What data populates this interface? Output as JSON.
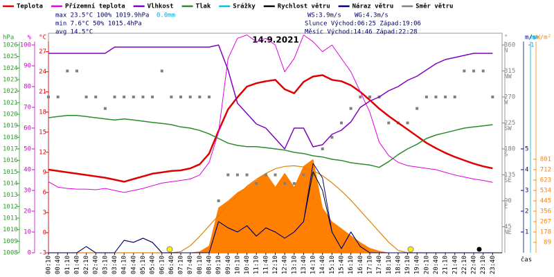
{
  "chart_data": {
    "type": "line",
    "title": "14.9.2021",
    "stats": [
      "max 23.5°C 100% 1019.9hPa",
      "min  7.6°C  50% 1015.4hPa",
      "avg 14.5°C"
    ],
    "rain_total": "0.0mm",
    "wind_stats": [
      "WS:3.9m/s",
      "WG:4.3m/s"
    ],
    "sun": "Slunce Východ:06:25 Západ:19:06",
    "moon": "Měsíc  Východ:14:46 Západ:22:28",
    "x_label": "čas",
    "categories": [
      "00:10",
      "00:40",
      "01:10",
      "01:40",
      "02:10",
      "02:40",
      "03:10",
      "03:40",
      "04:10",
      "04:40",
      "05:10",
      "05:40",
      "06:10",
      "06:40",
      "07:10",
      "07:40",
      "08:10",
      "08:40",
      "09:10",
      "09:40",
      "10:10",
      "10:40",
      "11:10",
      "11:40",
      "12:10",
      "12:40",
      "13:10",
      "13:40",
      "14:10",
      "14:40",
      "15:10",
      "15:40",
      "16:10",
      "16:40",
      "17:10",
      "17:40",
      "18:10",
      "18:40",
      "19:10",
      "19:40",
      "20:10",
      "20:40",
      "21:10",
      "21:40",
      "22:10",
      "22:40",
      "23:10",
      "23:40"
    ],
    "axes": {
      "pressure": {
        "unit": "hPa",
        "color": "#2a9d2a",
        "ylim": [
          1008,
          1026
        ],
        "yticks": [
          1008,
          1009,
          1010,
          1011,
          1012,
          1013,
          1014,
          1015,
          1016,
          1017,
          1018,
          1019,
          1020,
          1021,
          1022,
          1023,
          1024,
          1025,
          1026
        ]
      },
      "humidity": {
        "unit": "%",
        "color": "#d000d0",
        "ylim": [
          0,
          100
        ],
        "yticks": [
          0,
          10,
          20,
          30,
          40,
          50,
          60,
          70,
          80,
          90,
          100
        ]
      },
      "temperature": {
        "unit": "°C",
        "color": "#e00000",
        "ylim": [
          -3,
          28
        ],
        "yticks": [
          -3,
          0,
          3,
          6,
          9,
          12,
          15,
          18,
          21,
          24,
          27
        ]
      },
      "direction": {
        "unit": "°",
        "color": "#808080",
        "ylim": [
          0,
          360
        ],
        "yticks": [
          45,
          90,
          135,
          180,
          225,
          270,
          315,
          360
        ],
        "tick_names": [
          "NE",
          "E",
          "SE",
          "S",
          "SW",
          "W",
          "NW",
          "N"
        ]
      },
      "wind": {
        "unit": "m/s",
        "color": "#000080",
        "ylim": [
          0,
          10
        ],
        "yticks": [
          1,
          2,
          3,
          4,
          5
        ]
      },
      "rain": {
        "unit": "mm",
        "color": "#00a8e0",
        "ylim": [
          0,
          1
        ],
        "yticks": [
          1
        ]
      },
      "solar": {
        "unit": "W/m²",
        "color": "#ff8000",
        "ylim": [
          0,
          1780
        ],
        "yticks": [
          89,
          178,
          267,
          356,
          445,
          534,
          623,
          712,
          801
        ]
      }
    },
    "series": [
      {
        "color": "#ff8000",
        "axis": "solar",
        "style": "area",
        "values": [
          0,
          0,
          0,
          0,
          0,
          0,
          0,
          0,
          0,
          0,
          0,
          0,
          0,
          0,
          0,
          0,
          10,
          60,
          386,
          445,
          516,
          564,
          623,
          683,
          564,
          683,
          564,
          742,
          801,
          386,
          267,
          208,
          148,
          89,
          40,
          15,
          0,
          0,
          0,
          0,
          0,
          0,
          0,
          0,
          0,
          0,
          0,
          0
        ]
      },
      {
        "color": "#e08000",
        "axis": "solar",
        "style": "line",
        "values": [
          0,
          0,
          0,
          0,
          0,
          0,
          0,
          0,
          0,
          0,
          0,
          0,
          0,
          0,
          10,
          60,
          140,
          230,
          320,
          410,
          490,
          570,
          630,
          680,
          720,
          740,
          745,
          735,
          705,
          660,
          600,
          530,
          450,
          360,
          270,
          180,
          90,
          20,
          0,
          0,
          0,
          0,
          0,
          0,
          0,
          0,
          0,
          0
        ]
      },
      {
        "name": "Teplota",
        "color": "#e00000",
        "axis": "temperature",
        "style": "line",
        "width": 2.5,
        "values": [
          9.4,
          9.2,
          9.0,
          8.8,
          8.6,
          8.4,
          8.2,
          7.9,
          7.6,
          8.0,
          8.4,
          8.8,
          9.0,
          9.2,
          9.3,
          9.6,
          10.2,
          11.8,
          15.2,
          18.4,
          20.2,
          21.8,
          22.3,
          22.6,
          22.8,
          21.4,
          20.8,
          22.5,
          23.3,
          23.5,
          22.8,
          22.6,
          22.0,
          21.0,
          19.8,
          18.5,
          17.4,
          16.4,
          15.4,
          14.4,
          13.4,
          12.6,
          11.9,
          11.3,
          10.8,
          10.3,
          9.9,
          9.6
        ]
      },
      {
        "name": "Přízemní teplota",
        "color": "#e000e0",
        "axis": "temperature",
        "style": "line",
        "width": 1,
        "values": [
          7.6,
          6.8,
          6.6,
          6.5,
          6.5,
          6.4,
          6.6,
          6.3,
          6.0,
          6.3,
          6.6,
          7.0,
          7.4,
          7.6,
          7.8,
          8.0,
          8.6,
          10.5,
          15,
          26,
          29,
          29.5,
          28.5,
          29,
          28,
          24,
          26,
          29.5,
          28.5,
          27,
          28,
          26,
          24,
          21,
          18,
          13.5,
          11.5,
          10.5,
          10,
          9.8,
          9.6,
          9.4,
          9.0,
          8.6,
          8.3,
          8.0,
          7.8,
          7.5
        ]
      },
      {
        "name": "Vlhkost",
        "color": "#8000c0",
        "axis": "humidity",
        "style": "line",
        "width": 1.5,
        "values": [
          96,
          96,
          96,
          96,
          96,
          96,
          96,
          99,
          99,
          99,
          99,
          99,
          99,
          99,
          99,
          99,
          99,
          99,
          100,
          88,
          72,
          67,
          62,
          60,
          55,
          50,
          60,
          60,
          51,
          52,
          57,
          59,
          63,
          70,
          73,
          75,
          78,
          80,
          83,
          85,
          88,
          91,
          93,
          94,
          95,
          96,
          96,
          96
        ]
      },
      {
        "name": "Tlak",
        "color": "#2a8a2a",
        "axis": "pressure",
        "style": "line",
        "width": 1.5,
        "values": [
          1019.7,
          1019.8,
          1019.9,
          1019.9,
          1019.8,
          1019.7,
          1019.6,
          1019.5,
          1019.6,
          1019.5,
          1019.4,
          1019.3,
          1019.2,
          1019.1,
          1018.9,
          1018.8,
          1018.6,
          1018.3,
          1017.9,
          1017.5,
          1017.3,
          1017.2,
          1017.2,
          1017.1,
          1017.0,
          1016.9,
          1016.7,
          1016.6,
          1016.4,
          1016.3,
          1016.1,
          1016.0,
          1015.8,
          1015.7,
          1015.6,
          1015.4,
          1015.9,
          1016.5,
          1017.0,
          1017.4,
          1017.9,
          1018.2,
          1018.4,
          1018.6,
          1018.8,
          1018.9,
          1019.0,
          1019.1
        ]
      },
      {
        "name": "Srážky",
        "color": "#00c0e0",
        "axis": "rain",
        "style": "line"
      },
      {
        "name": "Rychlost větru",
        "color": "#000000",
        "axis": "wind",
        "style": "line",
        "width": 1,
        "values": [
          0,
          0,
          0,
          0,
          0.3,
          0,
          0,
          0,
          0.6,
          0.5,
          0.7,
          0.5,
          0,
          0,
          0,
          0,
          0,
          0,
          1.5,
          1.2,
          1.0,
          1.3,
          0.8,
          1.2,
          1.0,
          0.7,
          1.0,
          1.5,
          3.9,
          3.0,
          1.0,
          0.2,
          1.0,
          0.3,
          0,
          0,
          0,
          0,
          0,
          0,
          0,
          0,
          0,
          0,
          0,
          0,
          0,
          0
        ]
      },
      {
        "name": "Náraz větru",
        "color": "#000080",
        "axis": "wind",
        "style": "line",
        "width": 1,
        "values": [
          0,
          0,
          0,
          0,
          0.3,
          0,
          0,
          0,
          0.6,
          0.5,
          0.7,
          0.5,
          0,
          0,
          0,
          0,
          0,
          0,
          1.5,
          1.2,
          1.0,
          1.3,
          0.8,
          1.2,
          1.0,
          0.7,
          1.0,
          1.5,
          4.3,
          3.6,
          1.0,
          0.2,
          1.0,
          0.3,
          0,
          0,
          0,
          0,
          0,
          0,
          0,
          0,
          0,
          0,
          0,
          0,
          0,
          0
        ]
      },
      {
        "name": "Směr větru",
        "color": "#808080",
        "axis": "direction",
        "style": "dots",
        "values": [
          270,
          270,
          315,
          315,
          270,
          270,
          250,
          270,
          270,
          270,
          270,
          270,
          315,
          270,
          270,
          270,
          270,
          270,
          90,
          135,
          135,
          135,
          120,
          135,
          135,
          120,
          120,
          135,
          135,
          180,
          200,
          225,
          250,
          270,
          270,
          270,
          225,
          225,
          225,
          250,
          270,
          270,
          270,
          270,
          315,
          315,
          315,
          270
        ]
      }
    ]
  }
}
